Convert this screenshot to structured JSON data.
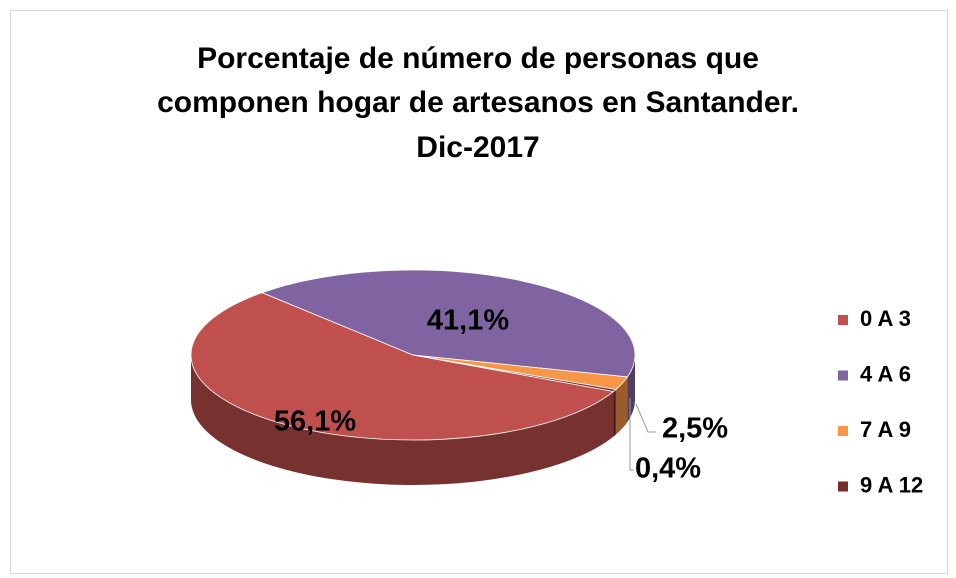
{
  "chart_data": {
    "type": "pie3d",
    "title": [
      "Porcentaje de número de personas que",
      "componen hogar de artesanos en Santander.",
      "Dic-2017"
    ],
    "categories": [
      "0 A 3",
      "4 A 6",
      "7 A 9",
      "9 A 12"
    ],
    "values": [
      56.1,
      41.1,
      2.5,
      0.4
    ],
    "value_labels": [
      "56,1%",
      "41,1%",
      "2,5%",
      "0,4%"
    ],
    "colors": [
      "#c0504d",
      "#8064a2",
      "#f79646",
      "#772c2a"
    ],
    "legend": "right"
  }
}
